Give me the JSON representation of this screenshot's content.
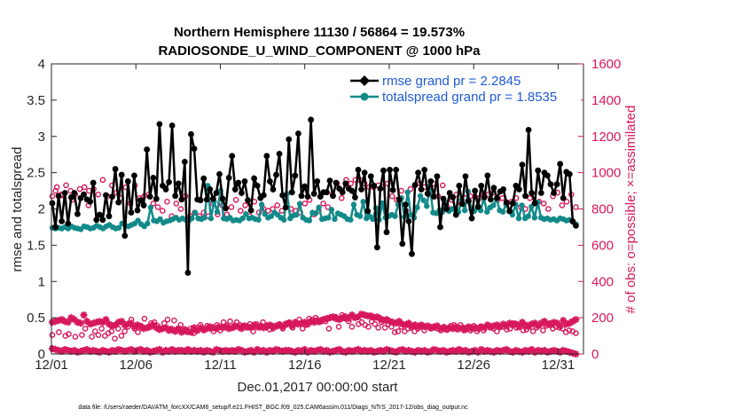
{
  "chart_data": {
    "type": "line",
    "title": "Northern Hemisphere 11130 / 56864 = 19.573%",
    "subtitle": "RADIOSONDE_U_WIND_COMPONENT @ 1000 hPa",
    "xlabel": "Dec.01,2017 00:00:00 start",
    "ylabel_left": "rmse and totalspread",
    "ylabel_right": "# of obs: o=possible; ×=assimilated",
    "footer": "data file: /Users/raeder/DAI/ATM_forcXX/CAM6_setup/f.e21.FHIST_BGC.f09_025.CAM6assim.011/Diags_NTrS_2017-12/obs_diag_output.nc",
    "xlim": [
      0,
      31.5
    ],
    "ylim_left": [
      0,
      4
    ],
    "ylim_right": [
      0,
      1600
    ],
    "x_ticks": [
      0,
      5,
      10,
      15,
      20,
      25,
      30
    ],
    "x_tick_labels": [
      "12/01",
      "12/06",
      "12/11",
      "12/16",
      "12/21",
      "12/26",
      "12/31"
    ],
    "y_ticks_left": [
      "0",
      "0.5",
      "1",
      "1.5",
      "2",
      "2.5",
      "3",
      "3.5",
      "4"
    ],
    "y_ticks_right": [
      "0",
      "200",
      "400",
      "600",
      "800",
      "1000",
      "1200",
      "1400",
      "1600"
    ],
    "grid": false,
    "legend_position": "top-right",
    "colors": {
      "rmse": "#000000",
      "spread": "#138a8a",
      "obs": "#d7185c",
      "legend_text": "#1f5bd6"
    },
    "series": [
      {
        "name": "rmse",
        "legend": "rmse grand pr = 2.2845",
        "axis": "left",
        "values": [
          2.08,
          1.75,
          2.18,
          1.83,
          2.22,
          1.8,
          2.16,
          2.22,
          1.93,
          2.15,
          2.2,
          2.13,
          2.1,
          2.36,
          1.85,
          1.92,
          1.85,
          2.19,
          1.9,
          2.17,
          2.55,
          2.09,
          2.47,
          1.63,
          2.38,
          1.95,
          2.46,
          1.98,
          2.12,
          2.05,
          2.82,
          2.17,
          2.43,
          2.14,
          3.17,
          2.32,
          2.27,
          2.37,
          3.15,
          2.18,
          2.35,
          2.13,
          2.65,
          1.12,
          3.03,
          2.83,
          2.13,
          2.12,
          2.42,
          2.13,
          2.27,
          2.14,
          2.22,
          2.48,
          2.14,
          2.01,
          2.43,
          2.73,
          2.27,
          2.36,
          2.22,
          2.38,
          2.12,
          1.98,
          2.42,
          2.32,
          2.15,
          2.19,
          2.73,
          2.38,
          2.27,
          2.47,
          2.76,
          2.19,
          2.02,
          2.96,
          2.23,
          2.46,
          3.04,
          2.18,
          2.31,
          2.17,
          3.23,
          2.21,
          2.38,
          2.17,
          2.23,
          2.23,
          2.39,
          2.18,
          2.36,
          2.28,
          2.23,
          2.35,
          2.28,
          2.25,
          2.16,
          2.54,
          2.27,
          2.5,
          1.97,
          2.45,
          2.32,
          1.47,
          2.28,
          2.53,
          1.68,
          2.54,
          2.26,
          2.54,
          2.13,
          1.52,
          2.06,
          1.83,
          1.38,
          2.33,
          2.5,
          2.27,
          2.54,
          2.21,
          2.38,
          2.17,
          2.45,
          1.75,
          2.14,
          2.0,
          2.22,
          2.16,
          1.92,
          2.32,
          2.07,
          2.45,
          2.11,
          1.87,
          2.25,
          2.03,
          2.32,
          2.16,
          2.46,
          2.13,
          2.29,
          2.15,
          2.24,
          2.27,
          2.09,
          1.97,
          2.08,
          2.32,
          2.27,
          2.61,
          2.18,
          3.09,
          2.22,
          2.08,
          2.53,
          2.22,
          2.5,
          2.46,
          2.34,
          2.22,
          2.34,
          2.62,
          2.15,
          2.51,
          2.48,
          1.83,
          1.77
        ]
      },
      {
        "name": "totalspread",
        "legend": "totalspread grand pr = 1.8535",
        "axis": "left",
        "values": [
          1.74,
          1.73,
          1.74,
          1.73,
          1.75,
          1.73,
          1.76,
          1.74,
          1.73,
          1.72,
          1.76,
          1.75,
          1.73,
          1.74,
          1.77,
          1.75,
          1.73,
          1.76,
          1.78,
          1.75,
          1.73,
          1.74,
          1.8,
          1.77,
          1.76,
          1.78,
          1.8,
          1.84,
          1.79,
          1.76,
          1.8,
          2.02,
          1.84,
          1.83,
          1.86,
          1.81,
          1.83,
          1.84,
          1.86,
          1.88,
          1.85,
          1.87,
          1.85,
          1.84,
          1.87,
          1.95,
          1.87,
          1.86,
          1.88,
          2.32,
          1.87,
          2.1,
          1.96,
          2.25,
          1.87,
          1.86,
          1.88,
          1.84,
          1.85,
          1.84,
          1.87,
          1.93,
          1.87,
          1.88,
          1.86,
          1.85,
          2.06,
          1.93,
          1.88,
          1.9,
          1.95,
          1.92,
          1.88,
          1.85,
          2.21,
          1.87,
          1.91,
          1.92,
          2.07,
          1.88,
          1.85,
          1.84,
          1.95,
          1.94,
          2.02,
          1.86,
          1.87,
          1.88,
          1.99,
          1.86,
          1.94,
          1.92,
          1.9,
          1.86,
          1.85,
          2.06,
          1.92,
          1.9,
          2.1,
          1.87,
          1.9,
          1.86,
          2.01,
          1.85,
          2.08,
          1.88,
          1.9,
          1.92,
          1.9,
          2.06,
          2.15,
          1.89,
          2.23,
          1.92,
          1.88,
          2.02,
          2.18,
          2.12,
          2.04,
          2.32,
          1.95,
          1.94,
          1.98,
          1.96,
          2.09,
          1.97,
          2.0,
          1.98,
          1.96,
          2.12,
          1.98,
          2.24,
          2.0,
          1.97,
          2.02,
          1.98,
          2.15,
          1.96,
          2.02,
          2.05,
          2.14,
          1.98,
          1.96,
          2.06,
          1.97,
          1.92,
          2.06,
          1.87,
          2.05,
          1.87,
          1.9,
          2.03,
          1.88,
          2.09,
          1.88,
          1.86,
          1.87,
          1.85,
          1.86,
          1.84,
          1.87,
          1.86,
          1.84,
          1.85,
          1.82,
          1.79
        ]
      },
      {
        "name": "obs possible",
        "marker": "o",
        "axis": "right",
        "values": [
          105,
          900,
          120,
          875,
          100,
          110,
          850,
          95,
          175,
          105,
          140,
          820,
          95,
          125,
          105,
          140,
          100,
          115,
          125,
          85,
          140,
          100,
          125,
          150,
          190,
          140,
          120,
          155,
          195,
          145,
          170,
          175,
          155,
          140,
          170,
          190,
          140,
          185,
          135,
          160,
          125,
          120,
          140,
          115,
          145,
          160,
          130,
          155,
          140,
          125,
          160,
          130,
          175,
          160,
          180,
          145,
          175,
          160,
          155,
          145,
          165,
          125,
          165,
          145,
          175,
          145,
          135,
          140,
          150,
          165,
          140,
          160,
          175,
          145,
          170,
          190,
          140,
          160,
          195,
          190,
          200,
          175,
          190,
          180,
          140,
          200,
          205,
          150,
          215,
          195,
          180,
          150,
          205,
          165,
          175,
          160,
          150,
          180,
          165,
          145,
          175,
          145,
          165,
          150,
          120,
          125,
          150,
          125,
          140,
          145,
          125,
          140,
          150,
          130,
          150,
          140,
          145,
          140,
          130,
          150,
          135,
          155,
          160,
          135,
          160,
          130,
          145,
          130,
          155,
          125,
          150,
          130,
          155,
          145,
          140,
          125,
          150,
          150,
          135,
          140,
          170,
          145,
          160,
          130,
          135,
          160,
          125,
          145,
          160,
          130,
          155,
          170,
          140,
          150,
          145,
          140,
          120,
          130,
          125,
          115
        ],
        "high_values": [
          870,
          920,
          880,
          930,
          900,
          880,
          910,
          920,
          900,
          910,
          880,
          960,
          870,
          930,
          890,
          860,
          920,
          830,
          930,
          860,
          870,
          880,
          830,
          810,
          790,
          840,
          760,
          830,
          800,
          870,
          760,
          780,
          760,
          780,
          760,
          830,
          770,
          820,
          770,
          810,
          850,
          790,
          820,
          760,
          840,
          780,
          800,
          790,
          800,
          820,
          790,
          830,
          800,
          790,
          780,
          830,
          850,
          770,
          790,
          830,
          810,
          880,
          940,
          860,
          960,
          940,
          960,
          960,
          940,
          920,
          920,
          930,
          920,
          940,
          870,
          850,
          900,
          790,
          910,
          930,
          940,
          920,
          880,
          940,
          870,
          930,
          810,
          850,
          880,
          830,
          860,
          870,
          870,
          860,
          880,
          880,
          890,
          850,
          860,
          830,
          840,
          860,
          810,
          800,
          860,
          830,
          840,
          830,
          800,
          870,
          890,
          820,
          840,
          880,
          810
        ]
      },
      {
        "name": "obs assimilated",
        "marker": "*",
        "axis": "right",
        "values": [
          175,
          180,
          185,
          190,
          180,
          175,
          200,
          190,
          175,
          170,
          215,
          180,
          165,
          170,
          175,
          180,
          175,
          190,
          165,
          155,
          160,
          175,
          180,
          160,
          165,
          170,
          150,
          160,
          150,
          140,
          145,
          150,
          160,
          145,
          135,
          140,
          145,
          130,
          135,
          125,
          140,
          120,
          135,
          125,
          120,
          145,
          130,
          145,
          135,
          140,
          150,
          145,
          140,
          150,
          145,
          150,
          140,
          145,
          155,
          150,
          140,
          155,
          150,
          145,
          160,
          150,
          155,
          145,
          155,
          160,
          150,
          155,
          160,
          150,
          165,
          170,
          155,
          175,
          165,
          170,
          175,
          165,
          180,
          175,
          185,
          180,
          190,
          195,
          200,
          205,
          195,
          190,
          200,
          205,
          195,
          215,
          200,
          205,
          220,
          215,
          210,
          210,
          200,
          205,
          195,
          185,
          190,
          180,
          175,
          170,
          180,
          165,
          160,
          170,
          155,
          160,
          150,
          160,
          150,
          155,
          145,
          150,
          155,
          140,
          145,
          135,
          145,
          140,
          150,
          140,
          145,
          135,
          150,
          140,
          145,
          140,
          150,
          145,
          160,
          150,
          155,
          160,
          150,
          165,
          155,
          170,
          160,
          165,
          150,
          175,
          160,
          150,
          165,
          170,
          155,
          170,
          180,
          165,
          160,
          175,
          170,
          155,
          185,
          165,
          170,
          180,
          190
        ]
      },
      {
        "name": "obs assimilated (low)",
        "marker": "*",
        "axis": "right",
        "values": [
          30,
          25,
          20,
          15,
          25,
          20,
          15,
          20,
          10,
          15,
          20,
          25,
          15,
          20,
          15,
          10,
          20,
          15,
          10,
          20,
          15,
          25,
          20,
          15,
          20,
          25,
          15,
          20,
          25,
          15,
          20,
          10,
          15,
          20,
          25,
          10,
          20,
          15,
          25,
          15,
          20,
          20,
          15,
          25,
          15,
          20,
          15,
          20,
          10,
          20,
          15,
          10,
          25,
          20,
          15,
          20,
          15,
          20,
          15,
          25,
          20,
          10,
          15,
          20,
          10,
          25,
          15,
          20,
          10,
          20,
          15,
          25,
          20,
          15,
          20,
          20,
          15,
          10,
          20,
          15,
          25,
          10,
          20,
          15,
          20,
          25,
          15,
          20,
          10,
          15,
          20,
          25,
          15,
          10,
          20,
          15,
          20,
          25,
          15,
          20,
          15,
          20,
          10,
          15,
          20,
          15,
          25,
          20,
          15,
          10,
          20,
          25,
          15,
          20,
          15,
          10,
          20,
          15,
          20,
          10,
          15,
          25,
          20,
          15,
          20,
          10,
          15,
          20,
          15,
          25,
          15,
          20,
          10,
          15,
          20,
          10,
          25,
          15,
          20,
          15,
          10,
          20,
          15,
          20,
          25,
          15,
          10,
          20,
          15,
          10,
          20,
          15,
          25,
          10,
          20,
          15,
          20,
          10,
          15,
          20,
          15,
          10,
          20,
          15,
          10,
          5,
          0
        ]
      }
    ]
  }
}
